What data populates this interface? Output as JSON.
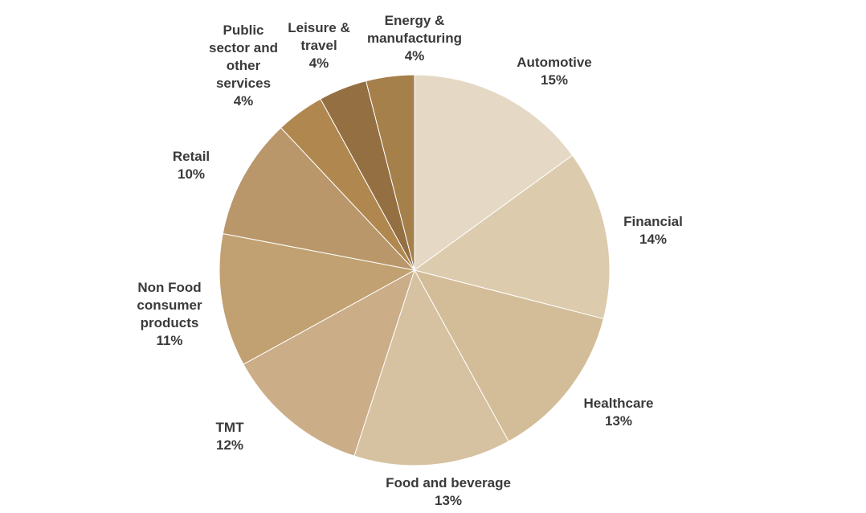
{
  "chart_data": {
    "type": "pie",
    "categories": [
      "Automotive",
      "Financial",
      "Healthcare",
      "Food and beverage",
      "TMT",
      "Non Food consumer products",
      "Retail",
      "Public sector and other services",
      "Leisure & travel",
      "Energy & manufacturing"
    ],
    "values": [
      15,
      14,
      13,
      13,
      12,
      11,
      10,
      4,
      4,
      4
    ],
    "value_labels": [
      "15%",
      "14%",
      "13%",
      "13%",
      "12%",
      "11%",
      "10%",
      "4%",
      "4%",
      "4%"
    ],
    "colors": [
      "#e5d9c5",
      "#dccbad",
      "#d3bd98",
      "#d6c1a0",
      "#cbad88",
      "#c1a171",
      "#b9976a",
      "#b0884f",
      "#946f42",
      "#a5804b"
    ]
  }
}
